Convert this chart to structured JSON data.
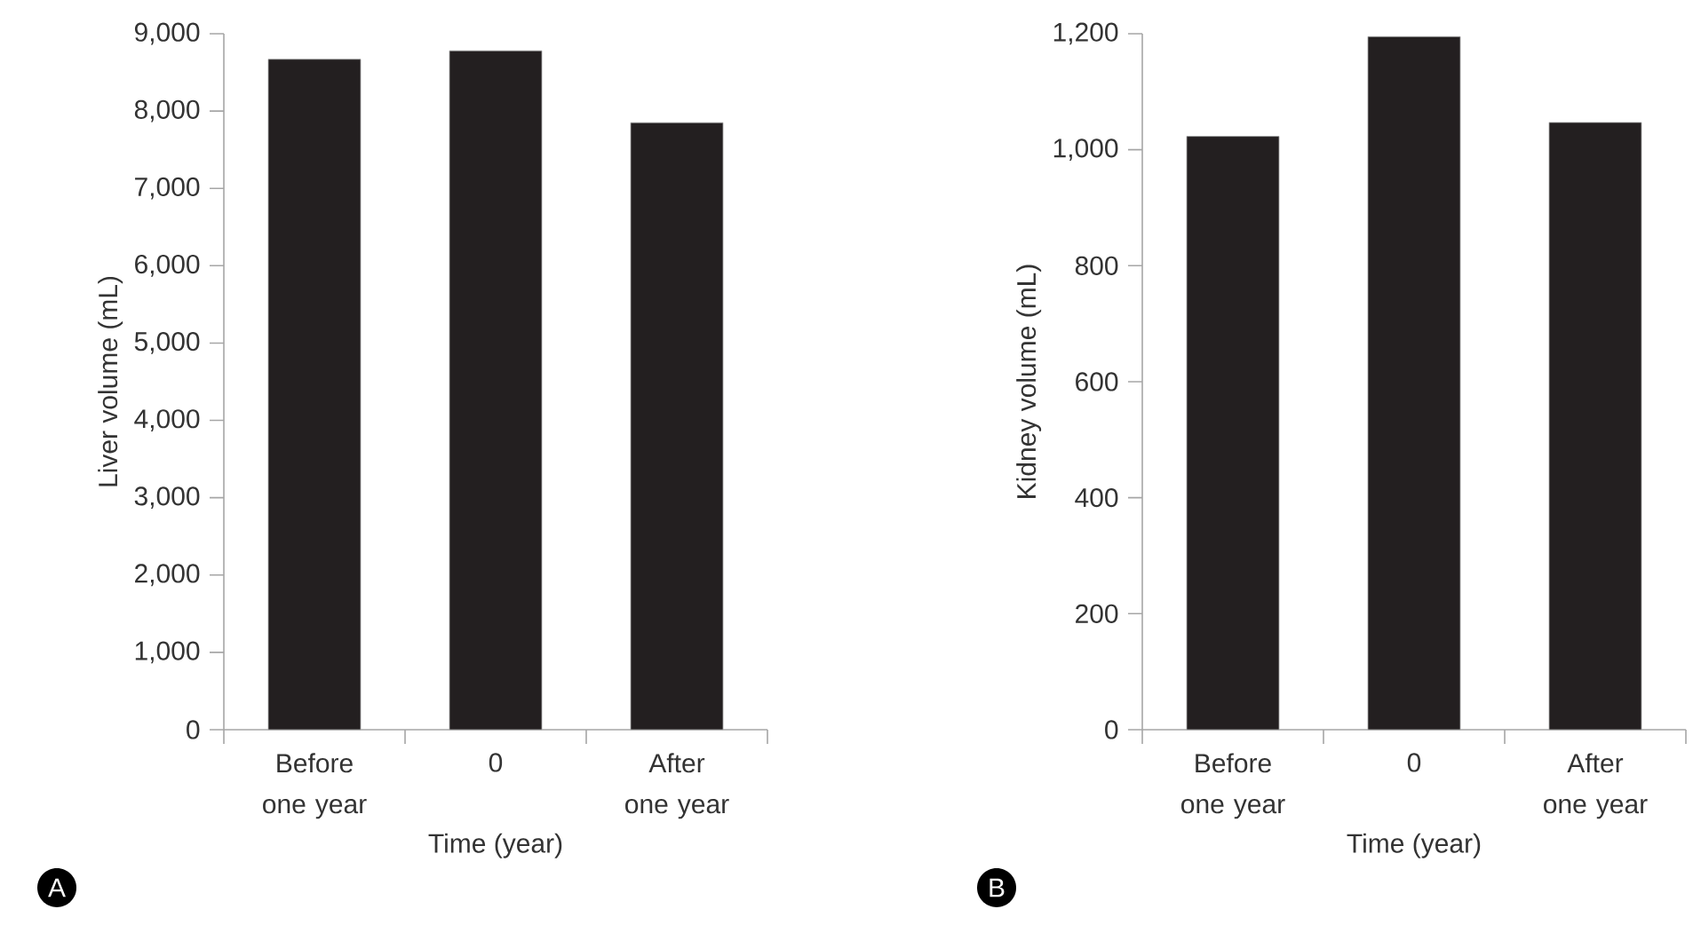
{
  "chart_data": [
    {
      "type": "bar",
      "categories": [
        "Before one year",
        "0",
        "After one year"
      ],
      "values": [
        8670,
        8780,
        7850
      ],
      "color": "#231f20",
      "xlabel": "Time (year)",
      "ylabel": "Liver volume (mL)",
      "ylim": [
        0,
        9000
      ],
      "yticks": [
        0,
        {
          "value": 1000,
          "label": "1,000"
        },
        {
          "value": 2000,
          "label": "2,000"
        },
        {
          "value": 3000,
          "label": "3,000"
        },
        {
          "value": 4000,
          "label": "4,000"
        },
        {
          "value": 5000,
          "label": "5,000"
        },
        {
          "value": 6000,
          "label": "6,000"
        },
        {
          "value": 7000,
          "label": "7,000"
        },
        {
          "value": 8000,
          "label": "8,000"
        },
        {
          "value": 9000,
          "label": "9,000"
        }
      ],
      "annotations": [
        "A"
      ]
    },
    {
      "type": "bar",
      "categories": [
        "Before one year",
        "0",
        "After one year"
      ],
      "values": [
        1023,
        1195,
        1047
      ],
      "color": "#231f20",
      "xlabel": "Time (year)",
      "ylabel": "Kidney volume (mL)",
      "ylim": [
        0,
        1200
      ],
      "yticks": [
        0,
        200,
        400,
        600,
        800,
        {
          "value": 1000,
          "label": "1,000"
        },
        {
          "value": 1200,
          "label": "1,200"
        }
      ],
      "annotations": [
        "B"
      ]
    }
  ]
}
